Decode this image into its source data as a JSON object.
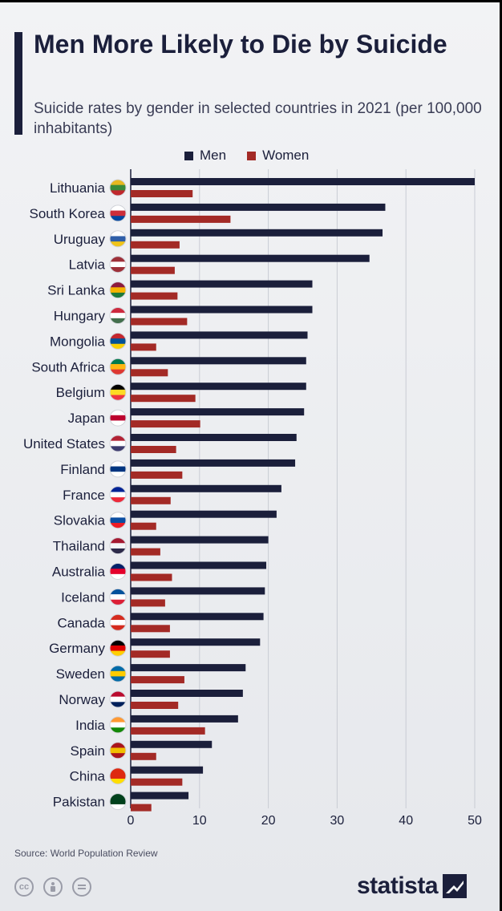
{
  "header": {
    "title": "Men More Likely to Die by Suicide",
    "subtitle": "Suicide rates by gender in selected countries in 2021 (per 100,000 inhabitants)"
  },
  "legend": {
    "men": "Men",
    "women": "Women"
  },
  "colors": {
    "men": "#1b1f3b",
    "women": "#a32a26",
    "grid": "#c9ccd4",
    "text": "#1b1f3b"
  },
  "chart_data": {
    "type": "bar",
    "orientation": "horizontal",
    "categories": [
      "Lithuania",
      "South Korea",
      "Uruguay",
      "Latvia",
      "Sri Lanka",
      "Hungary",
      "Mongolia",
      "South Africa",
      "Belgium",
      "Japan",
      "United States",
      "Finland",
      "France",
      "Slovakia",
      "Thailand",
      "Australia",
      "Iceland",
      "Canada",
      "Germany",
      "Sweden",
      "Norway",
      "India",
      "Spain",
      "China",
      "Pakistan"
    ],
    "series": [
      {
        "name": "Men",
        "values": [
          50.0,
          37.0,
          36.6,
          34.7,
          26.4,
          26.4,
          25.7,
          25.5,
          25.5,
          25.2,
          24.1,
          23.9,
          21.9,
          21.2,
          20.0,
          19.7,
          19.5,
          19.3,
          18.8,
          16.7,
          16.3,
          15.6,
          11.8,
          10.5,
          8.4
        ]
      },
      {
        "name": "Women",
        "values": [
          9.0,
          14.5,
          7.1,
          6.4,
          6.8,
          8.2,
          3.7,
          5.4,
          9.4,
          10.1,
          6.6,
          7.5,
          5.8,
          3.7,
          4.3,
          6.0,
          5.0,
          5.7,
          5.7,
          7.8,
          6.9,
          10.8,
          3.7,
          7.5,
          3.0
        ]
      }
    ],
    "xlim": [
      0,
      50
    ],
    "xticks": [
      0,
      10,
      20,
      30,
      40,
      50
    ],
    "grid": true,
    "legend_position": "top"
  },
  "flags": [
    "Lithuania",
    "South Korea",
    "Uruguay",
    "Latvia",
    "Sri Lanka",
    "Hungary",
    "Mongolia",
    "South Africa",
    "Belgium",
    "Japan",
    "United States",
    "Finland",
    "France",
    "Slovakia",
    "Thailand",
    "Australia",
    "Iceland",
    "Canada",
    "Germany",
    "Sweden",
    "Norway",
    "India",
    "Spain",
    "China",
    "Pakistan"
  ],
  "footer": {
    "source": "Source: World Population Review",
    "license_icons": [
      "cc-icon",
      "by-icon",
      "nd-icon"
    ],
    "brand": "statista"
  }
}
